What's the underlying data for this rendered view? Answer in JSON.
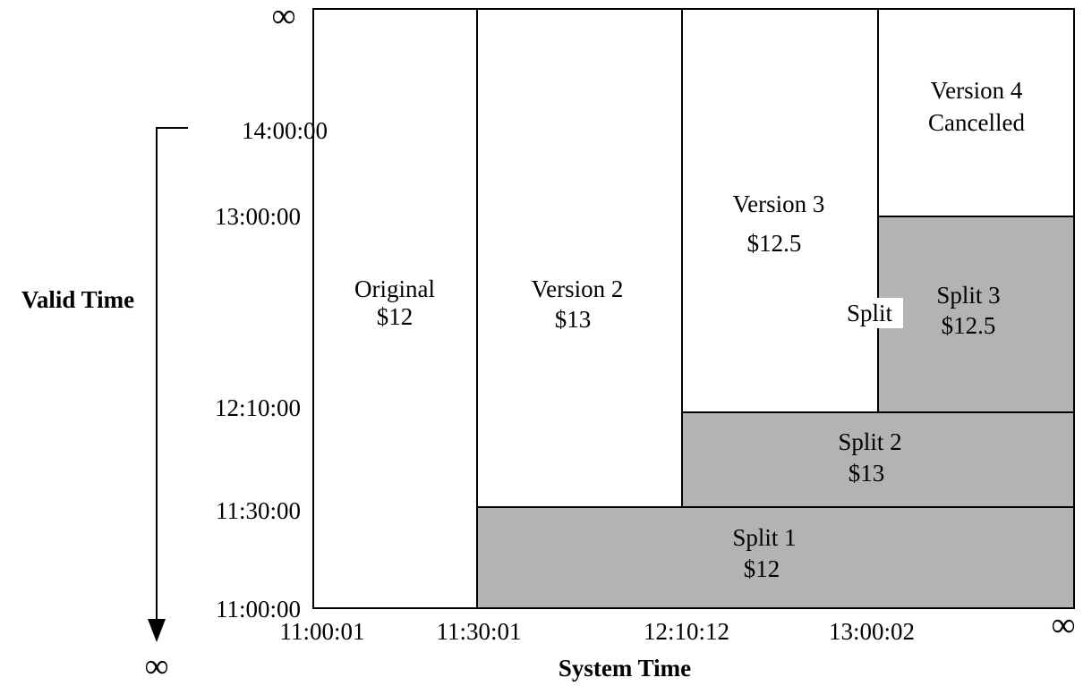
{
  "infinity_symbol": "∞",
  "axes": {
    "y_title": "Valid Time",
    "x_title": "System Time",
    "y_ticks": [
      "14:00:00",
      "13:00:00",
      "12:10:00",
      "11:30:00",
      "11:00:00"
    ],
    "x_ticks": [
      "11:00:01",
      "11:30:01",
      "12:10:12",
      "13:00:02"
    ]
  },
  "regions": [
    {
      "id": "original",
      "shaded": false,
      "lines": [
        "Original",
        "$12"
      ]
    },
    {
      "id": "version2",
      "shaded": false,
      "lines": [
        "Version 2",
        "$13"
      ]
    },
    {
      "id": "version3",
      "shaded": false,
      "lines": [
        "Version 3",
        "$12.5"
      ]
    },
    {
      "id": "version4",
      "shaded": false,
      "lines": [
        "Version 4",
        "Cancelled"
      ]
    },
    {
      "id": "split3",
      "shaded": true,
      "lines": [
        "Split 3",
        "$12.5"
      ]
    },
    {
      "id": "split2",
      "shaded": true,
      "lines": [
        "Split 2",
        "$13"
      ]
    },
    {
      "id": "split1",
      "shaded": true,
      "lines": [
        "Split 1",
        "$12"
      ]
    }
  ],
  "split_callout": "Split",
  "colors": {
    "shaded": "#b3b3b3",
    "line": "#000000",
    "background": "#ffffff"
  }
}
